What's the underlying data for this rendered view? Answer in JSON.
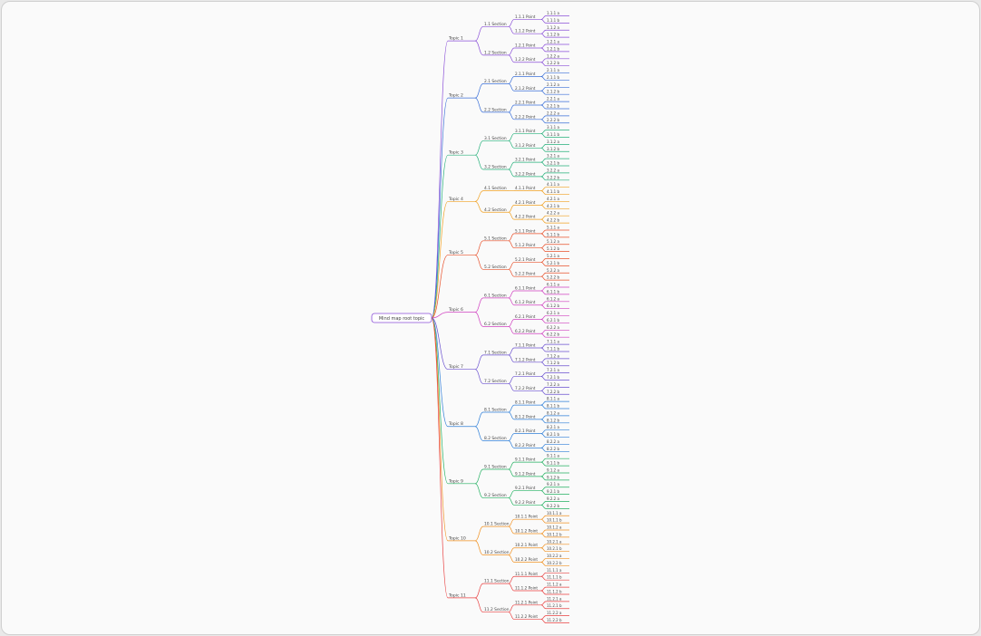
{
  "tree": {
    "label": "Mind map root topic",
    "children": [
      {
        "label": "Topic 1",
        "color": "#8a4fd8",
        "children": [
          {
            "label": "1.1 Section",
            "children": [
              {
                "label": "1.1.1 Point",
                "children": [
                  {
                    "label": "1.1.1 a"
                  },
                  {
                    "label": "1.1.1 b"
                  }
                ]
              },
              {
                "label": "1.1.2 Point",
                "children": [
                  {
                    "label": "1.1.2 a"
                  },
                  {
                    "label": "1.1.2 b"
                  }
                ]
              }
            ]
          },
          {
            "label": "1.2 Section",
            "children": [
              {
                "label": "1.2.1 Point",
                "children": [
                  {
                    "label": "1.2.1 a"
                  },
                  {
                    "label": "1.2.1 b"
                  }
                ]
              },
              {
                "label": "1.2.2 Point",
                "children": [
                  {
                    "label": "1.2.2 a"
                  },
                  {
                    "label": "1.2.2 b"
                  }
                ]
              }
            ]
          }
        ]
      },
      {
        "label": "Topic 2",
        "color": "#3a6fd8",
        "children": [
          {
            "label": "2.1 Section",
            "children": [
              {
                "label": "2.1.1 Point",
                "children": [
                  {
                    "label": "2.1.1 a"
                  },
                  {
                    "label": "2.1.1 b"
                  }
                ]
              },
              {
                "label": "2.1.2 Point",
                "children": [
                  {
                    "label": "2.1.2 a"
                  },
                  {
                    "label": "2.1.2 b"
                  }
                ]
              }
            ]
          },
          {
            "label": "2.2 Section",
            "children": [
              {
                "label": "2.2.1 Point",
                "children": [
                  {
                    "label": "2.2.1 a"
                  },
                  {
                    "label": "2.2.1 b"
                  }
                ]
              },
              {
                "label": "2.2.2 Point",
                "children": [
                  {
                    "label": "2.2.2 a"
                  },
                  {
                    "label": "2.2.2 b"
                  }
                ]
              }
            ]
          }
        ]
      },
      {
        "label": "Topic 3",
        "color": "#25b07a",
        "children": [
          {
            "label": "3.1 Section",
            "children": [
              {
                "label": "3.1.1 Point",
                "children": [
                  {
                    "label": "3.1.1 a"
                  },
                  {
                    "label": "3.1.1 b"
                  }
                ]
              },
              {
                "label": "3.1.2 Point",
                "children": [
                  {
                    "label": "3.1.2 a"
                  },
                  {
                    "label": "3.1.2 b"
                  }
                ]
              }
            ]
          },
          {
            "label": "3.2 Section",
            "children": [
              {
                "label": "3.2.1 Point",
                "children": [
                  {
                    "label": "3.2.1 a"
                  },
                  {
                    "label": "3.2.1 b"
                  }
                ]
              },
              {
                "label": "3.2.2 Point",
                "children": [
                  {
                    "label": "3.2.2 a"
                  },
                  {
                    "label": "3.2.2 b"
                  }
                ]
              }
            ]
          }
        ]
      },
      {
        "label": "Topic 4",
        "color": "#f0a020",
        "children": [
          {
            "label": "4.1 Section",
            "children": [
              {
                "label": "4.1.1 Point",
                "children": [
                  {
                    "label": "4.1.1 a"
                  },
                  {
                    "label": "4.1.1 b"
                  }
                ]
              }
            ]
          },
          {
            "label": "4.2 Section",
            "children": [
              {
                "label": "4.2.1 Point",
                "children": [
                  {
                    "label": "4.2.1 a"
                  },
                  {
                    "label": "4.2.1 b"
                  }
                ]
              },
              {
                "label": "4.2.2 Point",
                "children": [
                  {
                    "label": "4.2.2 a"
                  },
                  {
                    "label": "4.2.2 b"
                  }
                ]
              }
            ]
          }
        ]
      },
      {
        "label": "Topic 5",
        "color": "#e8502a",
        "children": [
          {
            "label": "5.1 Section",
            "children": [
              {
                "label": "5.1.1 Point",
                "children": [
                  {
                    "label": "5.1.1 a"
                  },
                  {
                    "label": "5.1.1 b"
                  }
                ]
              },
              {
                "label": "5.1.2 Point",
                "children": [
                  {
                    "label": "5.1.2 a"
                  },
                  {
                    "label": "5.1.2 b"
                  }
                ]
              }
            ]
          },
          {
            "label": "5.2 Section",
            "children": [
              {
                "label": "5.2.1 Point",
                "children": [
                  {
                    "label": "5.2.1 a"
                  },
                  {
                    "label": "5.2.1 b"
                  }
                ]
              },
              {
                "label": "5.2.2 Point",
                "children": [
                  {
                    "label": "5.2.2 a"
                  },
                  {
                    "label": "5.2.2 b"
                  }
                ]
              }
            ]
          }
        ]
      },
      {
        "label": "Topic 6",
        "color": "#d040c0",
        "children": [
          {
            "label": "6.1 Section",
            "children": [
              {
                "label": "6.1.1 Point",
                "children": [
                  {
                    "label": "6.1.1 a"
                  },
                  {
                    "label": "6.1.1 b"
                  }
                ]
              },
              {
                "label": "6.1.2 Point",
                "children": [
                  {
                    "label": "6.1.2 a"
                  },
                  {
                    "label": "6.1.2 b"
                  }
                ]
              }
            ]
          },
          {
            "label": "6.2 Section",
            "children": [
              {
                "label": "6.2.1 Point",
                "children": [
                  {
                    "label": "6.2.1 a"
                  },
                  {
                    "label": "6.2.1 b"
                  }
                ]
              },
              {
                "label": "6.2.2 Point",
                "children": [
                  {
                    "label": "6.2.2 a"
                  },
                  {
                    "label": "6.2.2 b"
                  }
                ]
              }
            ]
          }
        ]
      },
      {
        "label": "Topic 7",
        "color": "#6a50d0",
        "children": [
          {
            "label": "7.1 Section",
            "children": [
              {
                "label": "7.1.1 Point",
                "children": [
                  {
                    "label": "7.1.1 a"
                  },
                  {
                    "label": "7.1.1 b"
                  }
                ]
              },
              {
                "label": "7.1.2 Point",
                "children": [
                  {
                    "label": "7.1.2 a"
                  },
                  {
                    "label": "7.1.2 b"
                  }
                ]
              }
            ]
          },
          {
            "label": "7.2 Section",
            "children": [
              {
                "label": "7.2.1 Point",
                "children": [
                  {
                    "label": "7.2.1 a"
                  },
                  {
                    "label": "7.2.1 b"
                  }
                ]
              },
              {
                "label": "7.2.2 Point",
                "children": [
                  {
                    "label": "7.2.2 a"
                  },
                  {
                    "label": "7.2.2 b"
                  }
                ]
              }
            ]
          }
        ]
      },
      {
        "label": "Topic 8",
        "color": "#2f7fd8",
        "children": [
          {
            "label": "8.1 Section",
            "children": [
              {
                "label": "8.1.1 Point",
                "children": [
                  {
                    "label": "8.1.1 a"
                  },
                  {
                    "label": "8.1.1 b"
                  }
                ]
              },
              {
                "label": "8.1.2 Point",
                "children": [
                  {
                    "label": "8.1.2 a"
                  },
                  {
                    "label": "8.1.2 b"
                  }
                ]
              }
            ]
          },
          {
            "label": "8.2 Section",
            "children": [
              {
                "label": "8.2.1 Point",
                "children": [
                  {
                    "label": "8.2.1 a"
                  },
                  {
                    "label": "8.2.1 b"
                  }
                ]
              },
              {
                "label": "8.2.2 Point",
                "children": [
                  {
                    "label": "8.2.2 a"
                  },
                  {
                    "label": "8.2.2 b"
                  }
                ]
              }
            ]
          }
        ]
      },
      {
        "label": "Topic 9",
        "color": "#22b060",
        "children": [
          {
            "label": "9.1 Section",
            "children": [
              {
                "label": "9.1.1 Point",
                "children": [
                  {
                    "label": "9.1.1 a"
                  },
                  {
                    "label": "9.1.1 b"
                  }
                ]
              },
              {
                "label": "9.1.2 Point",
                "children": [
                  {
                    "label": "9.1.2 a"
                  },
                  {
                    "label": "9.1.2 b"
                  }
                ]
              }
            ]
          },
          {
            "label": "9.2 Section",
            "children": [
              {
                "label": "9.2.1 Point",
                "children": [
                  {
                    "label": "9.2.1 a"
                  },
                  {
                    "label": "9.2.1 b"
                  }
                ]
              },
              {
                "label": "9.2.2 Point",
                "children": [
                  {
                    "label": "9.2.2 a"
                  },
                  {
                    "label": "9.2.2 b"
                  }
                ]
              }
            ]
          }
        ]
      },
      {
        "label": "Topic 10",
        "color": "#f09020",
        "children": [
          {
            "label": "10.1 Section",
            "children": [
              {
                "label": "10.1.1 Point",
                "children": [
                  {
                    "label": "10.1.1 a"
                  },
                  {
                    "label": "10.1.1 b"
                  }
                ]
              },
              {
                "label": "10.1.2 Point",
                "children": [
                  {
                    "label": "10.1.2 a"
                  },
                  {
                    "label": "10.1.2 b"
                  }
                ]
              }
            ]
          },
          {
            "label": "10.2 Section",
            "children": [
              {
                "label": "10.2.1 Point",
                "children": [
                  {
                    "label": "10.2.1 a"
                  },
                  {
                    "label": "10.2.1 b"
                  }
                ]
              },
              {
                "label": "10.2.2 Point",
                "children": [
                  {
                    "label": "10.2.2 a"
                  },
                  {
                    "label": "10.2.2 b"
                  }
                ]
              }
            ]
          }
        ]
      },
      {
        "label": "Topic 11",
        "color": "#e84040",
        "children": [
          {
            "label": "11.1 Section",
            "children": [
              {
                "label": "11.1.1 Point",
                "children": [
                  {
                    "label": "11.1.1 a"
                  },
                  {
                    "label": "11.1.1 b"
                  }
                ]
              },
              {
                "label": "11.1.2 Point",
                "children": [
                  {
                    "label": "11.1.2 a"
                  },
                  {
                    "label": "11.1.2 b"
                  }
                ]
              }
            ]
          },
          {
            "label": "11.2 Section",
            "children": [
              {
                "label": "11.2.1 Point",
                "children": [
                  {
                    "label": "11.2.1 a"
                  },
                  {
                    "label": "11.2.1 b"
                  }
                ]
              },
              {
                "label": "11.2.2 Point",
                "children": [
                  {
                    "label": "11.2.2 a"
                  },
                  {
                    "label": "11.2.2 b"
                  }
                ]
              }
            ]
          }
        ]
      }
    ]
  }
}
